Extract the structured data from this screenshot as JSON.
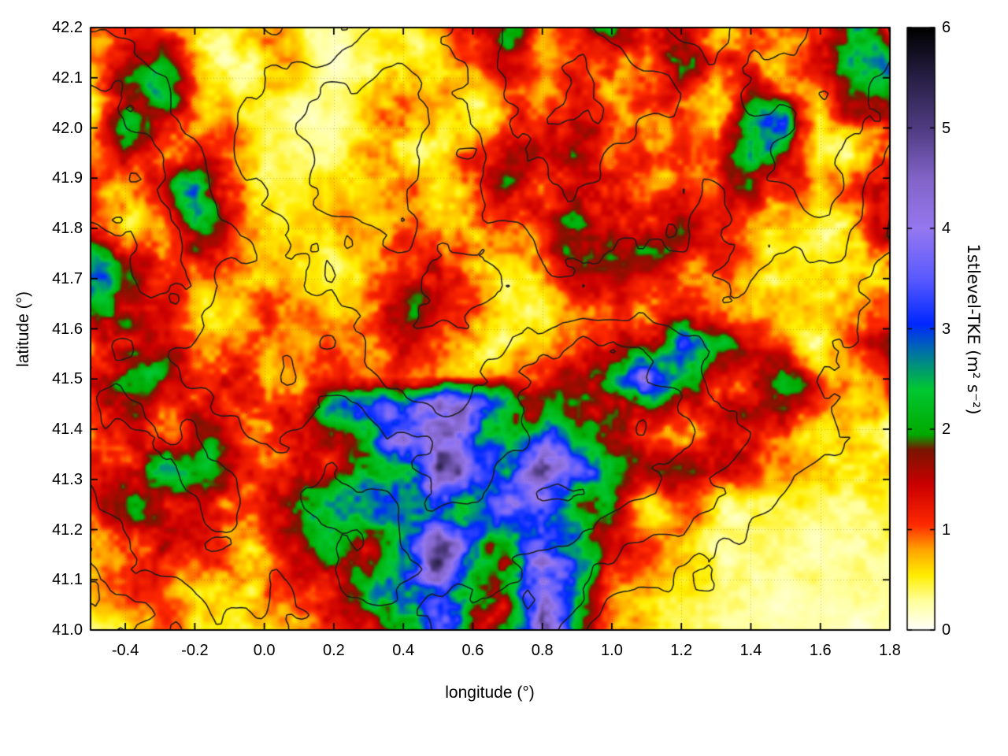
{
  "figure": {
    "background": "#ffffff"
  },
  "chart_data": {
    "type": "heatmap",
    "title": "",
    "xlabel": "longitude (°)",
    "ylabel": "latitude (°)",
    "colorbar_label": "1stlevel-TKE (m² s⁻²)",
    "xlim": [
      -0.5,
      1.8
    ],
    "ylim": [
      41.0,
      42.2
    ],
    "clim": [
      0,
      6
    ],
    "grid": "faint dotted grid at major ticks",
    "legend": "vertical colorbar on right, 0 (bottom/white) to 6 (top/black)",
    "xticks": [
      {
        "v": -0.4,
        "label": "-0.4"
      },
      {
        "v": -0.2,
        "label": "-0.2"
      },
      {
        "v": 0.0,
        "label": "0.0"
      },
      {
        "v": 0.2,
        "label": "0.2"
      },
      {
        "v": 0.4,
        "label": "0.4"
      },
      {
        "v": 0.6,
        "label": "0.6"
      },
      {
        "v": 0.8,
        "label": "0.8"
      },
      {
        "v": 1.0,
        "label": "1.0"
      },
      {
        "v": 1.2,
        "label": "1.2"
      },
      {
        "v": 1.4,
        "label": "1.4"
      },
      {
        "v": 1.6,
        "label": "1.6"
      },
      {
        "v": 1.8,
        "label": "1.8"
      }
    ],
    "yticks": [
      {
        "v": 41.0,
        "label": "41.0"
      },
      {
        "v": 41.1,
        "label": "41.1"
      },
      {
        "v": 41.2,
        "label": "41.2"
      },
      {
        "v": 41.3,
        "label": "41.3"
      },
      {
        "v": 41.4,
        "label": "41.4"
      },
      {
        "v": 41.5,
        "label": "41.5"
      },
      {
        "v": 41.6,
        "label": "41.6"
      },
      {
        "v": 41.7,
        "label": "41.7"
      },
      {
        "v": 41.8,
        "label": "41.8"
      },
      {
        "v": 41.9,
        "label": "41.9"
      },
      {
        "v": 42.0,
        "label": "42.0"
      },
      {
        "v": 42.1,
        "label": "42.1"
      },
      {
        "v": 42.2,
        "label": "42.2"
      }
    ],
    "cbticks": [
      {
        "v": 0,
        "label": "0"
      },
      {
        "v": 1,
        "label": "1"
      },
      {
        "v": 2,
        "label": "2"
      },
      {
        "v": 3,
        "label": "3"
      },
      {
        "v": 4,
        "label": "4"
      },
      {
        "v": 5,
        "label": "5"
      },
      {
        "v": 6,
        "label": "6"
      }
    ],
    "palette_stops": [
      [
        0.0,
        "#ffffff"
      ],
      [
        0.3,
        "#ffff99"
      ],
      [
        0.55,
        "#ffee00"
      ],
      [
        0.8,
        "#ffa500"
      ],
      [
        1.05,
        "#ff2a00"
      ],
      [
        1.45,
        "#cc0000"
      ],
      [
        1.8,
        "#7a1500"
      ],
      [
        1.95,
        "#00aa00"
      ],
      [
        2.4,
        "#00c832"
      ],
      [
        2.75,
        "#0078a0"
      ],
      [
        3.05,
        "#0028ff"
      ],
      [
        3.5,
        "#5a5aff"
      ],
      [
        4.0,
        "#9678f0"
      ],
      [
        4.5,
        "#8264c8"
      ],
      [
        5.0,
        "#503c82"
      ],
      [
        5.5,
        "#282046"
      ],
      [
        6.0,
        "#000000"
      ]
    ],
    "grid_info": {
      "cols": 24,
      "rows": 20,
      "lon_start": -0.5,
      "lon_step": 0.1,
      "lat_start": 42.2,
      "lat_step": -0.0632,
      "order": "rows listed north (42.2) to south (41.0)",
      "units": "m2 s-2 (TKE at first model level), coarse estimate read from colors"
    },
    "tke_grid": [
      [
        0.8,
        1.0,
        0.8,
        0.6,
        0.5,
        0.9,
        0.4,
        0.3,
        0.3,
        0.5,
        0.6,
        1.2,
        2.0,
        0.5,
        0.9,
        2.5,
        1.2,
        2.2,
        1.0,
        1.2,
        0.8,
        1.5,
        2.8,
        1.5
      ],
      [
        0.6,
        1.2,
        1.5,
        0.8,
        0.4,
        0.8,
        0.5,
        0.3,
        0.4,
        0.8,
        0.5,
        0.9,
        1.5,
        0.6,
        0.8,
        1.2,
        1.0,
        2.5,
        1.2,
        1.5,
        0.8,
        1.2,
        2.2,
        2.5
      ],
      [
        0.5,
        1.8,
        2.2,
        1.0,
        0.6,
        0.6,
        0.4,
        0.3,
        0.5,
        1.0,
        0.6,
        0.5,
        1.0,
        0.6,
        1.0,
        0.8,
        1.2,
        1.5,
        0.8,
        1.8,
        1.0,
        0.8,
        1.5,
        2.0
      ],
      [
        0.6,
        2.5,
        1.5,
        0.8,
        1.0,
        0.5,
        0.3,
        0.2,
        0.6,
        1.2,
        0.5,
        0.4,
        1.2,
        1.0,
        1.5,
        1.2,
        0.8,
        1.0,
        0.6,
        2.2,
        2.8,
        0.6,
        1.0,
        1.2
      ],
      [
        0.8,
        1.5,
        1.0,
        1.2,
        0.8,
        0.4,
        0.3,
        0.4,
        1.0,
        0.8,
        0.6,
        1.0,
        1.5,
        1.2,
        1.8,
        1.0,
        1.2,
        0.8,
        1.0,
        2.5,
        1.5,
        0.6,
        0.8,
        1.0
      ],
      [
        1.0,
        0.8,
        1.2,
        2.8,
        1.5,
        0.5,
        0.4,
        0.5,
        0.6,
        0.8,
        0.5,
        1.2,
        1.8,
        1.0,
        1.2,
        1.5,
        1.2,
        1.0,
        0.8,
        1.8,
        1.2,
        0.5,
        1.5,
        1.8
      ],
      [
        1.2,
        0.8,
        1.0,
        2.2,
        1.2,
        0.6,
        0.5,
        0.8,
        0.5,
        0.6,
        0.8,
        1.0,
        1.2,
        1.5,
        1.7,
        1.7,
        1.5,
        1.5,
        1.2,
        1.0,
        0.8,
        0.5,
        1.0,
        1.5
      ],
      [
        2.0,
        1.2,
        1.0,
        1.5,
        1.2,
        0.8,
        0.6,
        0.5,
        0.6,
        1.0,
        1.2,
        0.8,
        0.8,
        1.2,
        1.5,
        1.7,
        1.7,
        1.5,
        1.2,
        0.8,
        0.6,
        0.4,
        0.8,
        1.2
      ],
      [
        2.5,
        1.5,
        1.0,
        0.8,
        1.0,
        0.8,
        0.5,
        0.4,
        0.8,
        1.2,
        1.5,
        0.8,
        0.6,
        0.8,
        1.2,
        1.2,
        1.0,
        1.2,
        0.8,
        0.6,
        0.5,
        0.4,
        0.6,
        1.0
      ],
      [
        1.8,
        2.0,
        1.2,
        0.8,
        0.6,
        1.0,
        0.8,
        0.5,
        1.0,
        1.5,
        1.5,
        1.2,
        0.5,
        0.5,
        0.8,
        1.0,
        1.2,
        1.5,
        1.0,
        0.8,
        0.6,
        0.4,
        0.8,
        1.2
      ],
      [
        1.2,
        1.5,
        1.0,
        0.8,
        1.0,
        0.8,
        0.6,
        0.8,
        1.0,
        1.2,
        1.0,
        0.8,
        0.5,
        0.8,
        1.0,
        1.2,
        2.2,
        3.0,
        2.0,
        1.0,
        0.8,
        0.5,
        1.0,
        1.3
      ],
      [
        1.5,
        1.8,
        2.0,
        1.2,
        1.5,
        1.0,
        0.8,
        1.0,
        0.8,
        1.0,
        0.8,
        0.6,
        0.8,
        1.0,
        1.5,
        2.5,
        4.2,
        2.5,
        1.5,
        1.2,
        2.0,
        0.8,
        0.6,
        1.0
      ],
      [
        1.2,
        1.5,
        1.2,
        1.5,
        1.2,
        1.5,
        1.2,
        2.2,
        2.5,
        3.5,
        4.0,
        3.5,
        2.5,
        1.8,
        1.5,
        1.8,
        2.2,
        1.5,
        1.2,
        1.5,
        1.8,
        1.0,
        0.6,
        0.8
      ],
      [
        1.0,
        1.2,
        1.5,
        1.7,
        1.5,
        1.2,
        1.5,
        1.2,
        1.8,
        4.5,
        3.8,
        3.2,
        2.5,
        3.5,
        2.0,
        1.5,
        1.2,
        1.0,
        1.2,
        1.0,
        0.8,
        0.6,
        0.5,
        0.6
      ],
      [
        1.2,
        1.7,
        2.0,
        1.7,
        1.5,
        1.2,
        1.5,
        1.8,
        2.8,
        3.0,
        5.0,
        3.0,
        2.0,
        4.5,
        3.0,
        1.8,
        1.2,
        1.5,
        1.2,
        1.0,
        0.6,
        0.5,
        0.8,
        0.6
      ],
      [
        1.0,
        1.5,
        1.8,
        1.5,
        1.2,
        1.5,
        1.8,
        2.5,
        2.2,
        2.8,
        3.5,
        2.5,
        4.0,
        3.5,
        2.0,
        1.5,
        1.0,
        0.8,
        0.6,
        0.5,
        0.4,
        0.4,
        0.5,
        0.4
      ],
      [
        0.8,
        1.2,
        1.5,
        1.2,
        1.0,
        1.2,
        1.5,
        1.8,
        2.0,
        2.5,
        4.0,
        3.0,
        2.5,
        3.0,
        2.2,
        1.2,
        0.8,
        0.6,
        0.5,
        0.4,
        0.3,
        0.3,
        0.4,
        0.3
      ],
      [
        0.6,
        1.0,
        1.2,
        0.8,
        1.0,
        0.8,
        1.2,
        1.5,
        1.8,
        3.0,
        4.5,
        2.5,
        2.0,
        3.5,
        2.5,
        1.2,
        0.8,
        0.5,
        0.4,
        0.3,
        0.3,
        0.3,
        0.3,
        0.3
      ],
      [
        0.5,
        0.8,
        1.0,
        0.6,
        0.8,
        1.0,
        0.8,
        1.2,
        2.0,
        2.8,
        3.5,
        2.2,
        1.8,
        4.0,
        2.0,
        1.0,
        0.6,
        0.4,
        0.3,
        0.3,
        0.2,
        0.2,
        0.3,
        0.3
      ],
      [
        0.4,
        0.6,
        0.8,
        0.5,
        0.6,
        0.8,
        1.0,
        1.0,
        1.5,
        2.5,
        3.0,
        2.0,
        2.5,
        4.5,
        1.8,
        1.2,
        0.8,
        0.5,
        0.4,
        0.3,
        0.2,
        0.2,
        0.2,
        0.3
      ]
    ],
    "contour_overlay": {
      "description": "solid black terrain elevation contour lines drawn over the colour map",
      "levels": [
        0.36,
        0.44,
        0.52,
        0.6
      ],
      "elevation_grid": [
        [
          0.52,
          0.48,
          0.42,
          0.5,
          0.4,
          0.36,
          0.44,
          0.52,
          0.58,
          0.5,
          0.44,
          0.5,
          0.56,
          0.48
        ],
        [
          0.6,
          0.55,
          0.48,
          0.42,
          0.38,
          0.34,
          0.42,
          0.56,
          0.62,
          0.54,
          0.48,
          0.56,
          0.6,
          0.5
        ],
        [
          0.66,
          0.62,
          0.52,
          0.4,
          0.36,
          0.32,
          0.4,
          0.5,
          0.56,
          0.48,
          0.44,
          0.5,
          0.54,
          0.44
        ],
        [
          0.62,
          0.66,
          0.56,
          0.46,
          0.4,
          0.34,
          0.38,
          0.44,
          0.5,
          0.44,
          0.4,
          0.44,
          0.48,
          0.4
        ],
        [
          0.56,
          0.62,
          0.52,
          0.44,
          0.42,
          0.38,
          0.34,
          0.4,
          0.46,
          0.42,
          0.38,
          0.4,
          0.42,
          0.36
        ],
        [
          0.6,
          0.56,
          0.5,
          0.48,
          0.44,
          0.4,
          0.42,
          0.46,
          0.52,
          0.56,
          0.44,
          0.4,
          0.36,
          0.34
        ],
        [
          0.56,
          0.6,
          0.56,
          0.5,
          0.54,
          0.5,
          0.46,
          0.5,
          0.56,
          0.6,
          0.5,
          0.42,
          0.34,
          0.3
        ],
        [
          0.5,
          0.56,
          0.6,
          0.56,
          0.6,
          0.56,
          0.5,
          0.56,
          0.6,
          0.54,
          0.44,
          0.36,
          0.3,
          0.26
        ],
        [
          0.46,
          0.5,
          0.56,
          0.52,
          0.56,
          0.6,
          0.56,
          0.5,
          0.46,
          0.4,
          0.34,
          0.3,
          0.26,
          0.22
        ],
        [
          0.4,
          0.46,
          0.5,
          0.46,
          0.52,
          0.56,
          0.5,
          0.46,
          0.4,
          0.32,
          0.28,
          0.24,
          0.2,
          0.16
        ]
      ]
    }
  }
}
